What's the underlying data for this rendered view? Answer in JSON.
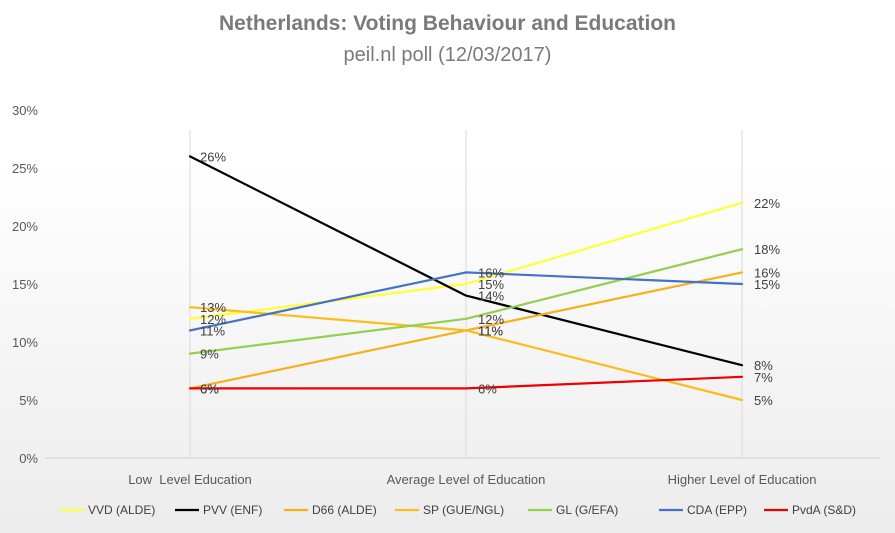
{
  "chart_data": {
    "type": "line",
    "title": "Netherlands: Voting Behaviour and Education",
    "subtitle": "peil.nl poll (12/03/2017)",
    "categories": [
      "Low  Level Education",
      "Average Level of Education",
      "Higher Level of Education"
    ],
    "ylim": [
      0,
      30
    ],
    "yticks": [
      0,
      5,
      10,
      15,
      20,
      25,
      30
    ],
    "ytick_labels": [
      "0%",
      "5%",
      "10%",
      "15%",
      "20%",
      "25%",
      "30%"
    ],
    "legend_position": "bottom",
    "series": [
      {
        "name": "VVD (ALDE)",
        "color": "#ffff33",
        "values": [
          12,
          15,
          22
        ],
        "labels": [
          "12%",
          "15%",
          "22%"
        ]
      },
      {
        "name": "PVV (ENF)",
        "color": "#000000",
        "values": [
          26,
          14,
          8
        ],
        "labels": [
          "26%",
          "14%",
          "8%"
        ]
      },
      {
        "name": "D66 (ALDE)",
        "color": "#f5b01c",
        "values": [
          6,
          11,
          16
        ],
        "labels": [
          "6%",
          "11%",
          "16%"
        ]
      },
      {
        "name": "SP (GUE/NGL)",
        "color": "#fcbc1a",
        "values": [
          13,
          11,
          5
        ],
        "labels": [
          "13%",
          "11%",
          "5%"
        ]
      },
      {
        "name": "GL (G/EFA)",
        "color": "#92d050",
        "values": [
          9,
          12,
          18
        ],
        "labels": [
          "9%",
          "12%",
          "18%"
        ]
      },
      {
        "name": "CDA (EPP)",
        "color": "#4472c4",
        "values": [
          11,
          16,
          15
        ],
        "labels": [
          "11%",
          "16%",
          "15%"
        ]
      },
      {
        "name": "PvdA (S&D)",
        "color": "#ee0000",
        "values": [
          6,
          6,
          7
        ],
        "labels": [
          "6%",
          "6%",
          "7%"
        ]
      }
    ]
  }
}
